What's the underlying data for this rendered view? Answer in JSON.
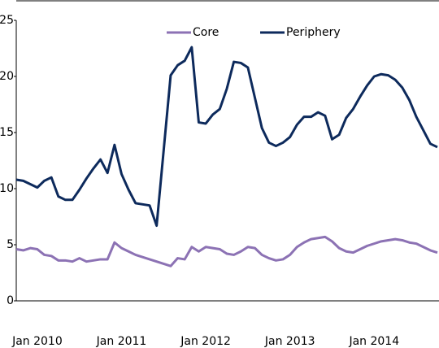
{
  "chart_data": {
    "type": "line",
    "categories": [
      null,
      null,
      null,
      "Jan 2010",
      null,
      null,
      null,
      null,
      null,
      null,
      null,
      null,
      null,
      null,
      null,
      "Jan 2011",
      null,
      null,
      null,
      null,
      null,
      null,
      null,
      null,
      null,
      null,
      null,
      "Jan 2012",
      null,
      null,
      null,
      null,
      null,
      null,
      null,
      null,
      null,
      null,
      null,
      "Jan 2013",
      null,
      null,
      null,
      null,
      null,
      null,
      null,
      null,
      null,
      null,
      null,
      "Jan 2014",
      null,
      null,
      null,
      null,
      null,
      null,
      null,
      null,
      null
    ],
    "series": [
      {
        "name": "Core",
        "color": "#8c72b4",
        "values": [
          4.6,
          4.5,
          4.7,
          4.6,
          4.1,
          4.0,
          3.6,
          3.6,
          3.5,
          3.8,
          3.5,
          3.6,
          3.7,
          3.7,
          5.2,
          4.7,
          4.4,
          4.1,
          3.9,
          3.7,
          3.5,
          3.3,
          3.1,
          3.8,
          3.7,
          4.8,
          4.4,
          4.8,
          4.7,
          4.6,
          4.2,
          4.1,
          4.4,
          4.8,
          4.7,
          4.1,
          3.8,
          3.6,
          3.7,
          4.1,
          4.8,
          5.2,
          5.5,
          5.6,
          5.7,
          5.3,
          4.7,
          4.4,
          4.3,
          4.6,
          4.9,
          5.1,
          5.3,
          5.4,
          5.5,
          5.4,
          5.2,
          5.1,
          4.8,
          4.5,
          4.3
        ]
      },
      {
        "name": "Periphery",
        "color": "#0d2a5c",
        "values": [
          10.8,
          10.7,
          10.4,
          10.1,
          10.7,
          11.0,
          9.3,
          9.0,
          9.0,
          9.9,
          10.9,
          11.8,
          12.6,
          11.4,
          13.9,
          11.3,
          9.9,
          8.7,
          8.6,
          8.5,
          6.7,
          13.4,
          20.1,
          21.0,
          21.4,
          22.6,
          15.9,
          15.8,
          16.6,
          17.1,
          18.9,
          21.3,
          21.2,
          20.8,
          18.1,
          15.4,
          14.1,
          13.8,
          14.1,
          14.6,
          15.7,
          16.4,
          16.4,
          16.8,
          16.5,
          14.4,
          14.8,
          16.3,
          17.1,
          18.2,
          19.2,
          20.0,
          20.2,
          20.1,
          19.7,
          19.0,
          17.9,
          16.4,
          15.2,
          14.0,
          13.7
        ]
      }
    ],
    "ylim": [
      0,
      25
    ],
    "yticks": [
      0,
      5,
      10,
      15,
      20,
      25
    ],
    "grid": false,
    "legend": "upper center"
  }
}
